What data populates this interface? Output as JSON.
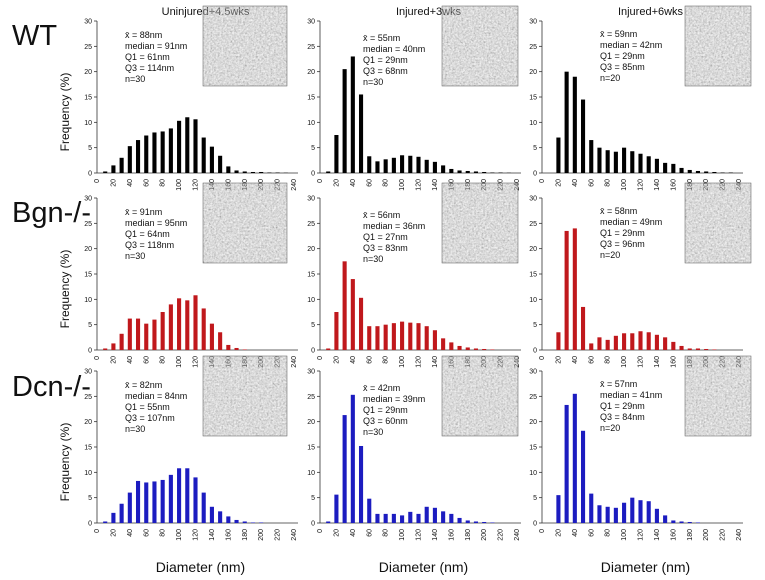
{
  "figure": {
    "col_titles": [
      "Uninjured+4.5wks",
      "Injured+3wks",
      "Injured+6wks"
    ],
    "row_labels": [
      "WT",
      "Bgn-/-",
      "Dcn-/-"
    ],
    "ylabel": "Frequency (%)",
    "xlabel": "Diameter (nm)",
    "row_colors": [
      "#000000",
      "#c0181c",
      "#1c1cc0"
    ]
  },
  "chart_data": [
    {
      "type": "bar",
      "row": "WT",
      "col": "Uninjured+4.5wks",
      "x": [
        0,
        10,
        20,
        30,
        40,
        50,
        60,
        70,
        80,
        90,
        100,
        110,
        120,
        130,
        140,
        150,
        160,
        170,
        180,
        190,
        200,
        210,
        220,
        230,
        240
      ],
      "values": [
        0,
        0.3,
        1.5,
        3,
        5.3,
        6.5,
        7.4,
        8,
        8.2,
        8.8,
        10.3,
        11,
        10.6,
        7,
        5.2,
        3.4,
        1.3,
        0.5,
        0.3,
        0.2,
        0.2,
        0.1,
        0.1,
        0.05,
        0
      ],
      "ylim": [
        0,
        30
      ],
      "stats": [
        "x̄ = 88nm",
        "median = 91nm",
        "Q1 = 61nm",
        "Q3 = 114nm",
        "n=30"
      ]
    },
    {
      "type": "bar",
      "row": "WT",
      "col": "Injured+3wks",
      "x": [
        0,
        10,
        20,
        30,
        40,
        50,
        60,
        70,
        80,
        90,
        100,
        110,
        120,
        130,
        140,
        150,
        160,
        170,
        180,
        190,
        200,
        210,
        220,
        230,
        240
      ],
      "values": [
        0,
        0.3,
        7.5,
        20.5,
        23,
        15.5,
        3.3,
        2.3,
        2.7,
        3,
        3.5,
        3.4,
        3.2,
        2.6,
        2.2,
        1.5,
        0.8,
        0.5,
        0.4,
        0.3,
        0.2,
        0.1,
        0.1,
        0.05,
        0
      ],
      "ylim": [
        0,
        30
      ],
      "stats": [
        "x̄ = 55nm",
        "median = 40nm",
        "Q1 = 29nm",
        "Q3 = 68nm",
        "n=30"
      ]
    },
    {
      "type": "bar",
      "row": "WT",
      "col": "Injured+6wks",
      "x": [
        0,
        10,
        20,
        30,
        40,
        50,
        60,
        70,
        80,
        90,
        100,
        110,
        120,
        130,
        140,
        150,
        160,
        170,
        180,
        190,
        200,
        210,
        220,
        230,
        240
      ],
      "values": [
        0,
        0,
        7,
        20,
        19,
        14.5,
        6.5,
        5,
        4.5,
        4.2,
        5,
        4.3,
        3.8,
        3.3,
        2.8,
        2,
        1.8,
        1,
        0.6,
        0.4,
        0.3,
        0.2,
        0.1,
        0.1,
        0
      ],
      "ylim": [
        0,
        30
      ],
      "stats": [
        "x̄ = 59nm",
        "median = 42nm",
        "Q1 = 29nm",
        "Q3 = 85nm",
        "n=20"
      ]
    },
    {
      "type": "bar",
      "row": "Bgn-/-",
      "col": "Uninjured+4.5wks",
      "x": [
        0,
        10,
        20,
        30,
        40,
        50,
        60,
        70,
        80,
        90,
        100,
        110,
        120,
        130,
        140,
        150,
        160,
        170,
        180,
        190,
        200,
        210,
        220,
        230,
        240
      ],
      "values": [
        0,
        0.3,
        1.3,
        3.2,
        6.2,
        6.2,
        5.2,
        6,
        7.5,
        9,
        10.2,
        9.8,
        10.8,
        8.2,
        5.2,
        3.5,
        1,
        0.4,
        0.1,
        0,
        0,
        0,
        0,
        0,
        0
      ],
      "ylim": [
        0,
        30
      ],
      "stats": [
        "x̄ = 91nm",
        "median = 95nm",
        "Q1 = 64nm",
        "Q3 = 118nm",
        "n=30"
      ]
    },
    {
      "type": "bar",
      "row": "Bgn-/-",
      "col": "Injured+3wks",
      "x": [
        0,
        10,
        20,
        30,
        40,
        50,
        60,
        70,
        80,
        90,
        100,
        110,
        120,
        130,
        140,
        150,
        160,
        170,
        180,
        190,
        200,
        210,
        220,
        230,
        240
      ],
      "values": [
        0,
        0.3,
        7.5,
        17.5,
        14,
        10.3,
        4.7,
        4.7,
        5,
        5.3,
        5.6,
        5.4,
        5.3,
        4.7,
        3.9,
        2.3,
        1.5,
        0.8,
        0.5,
        0.3,
        0.2,
        0.1,
        0,
        0,
        0
      ],
      "ylim": [
        0,
        30
      ],
      "stats": [
        "x̄ = 56nm",
        "median = 36nm",
        "Q1 = 27nm",
        "Q3 = 83nm",
        "n=30"
      ]
    },
    {
      "type": "bar",
      "row": "Bgn-/-",
      "col": "Injured+6wks",
      "x": [
        0,
        10,
        20,
        30,
        40,
        50,
        60,
        70,
        80,
        90,
        100,
        110,
        120,
        130,
        140,
        150,
        160,
        170,
        180,
        190,
        200,
        210,
        220,
        230,
        240
      ],
      "values": [
        0,
        0,
        3.5,
        23.5,
        24,
        8.5,
        1.3,
        2.5,
        2,
        2.8,
        3.3,
        3.3,
        3.7,
        3.5,
        3,
        2.5,
        1.6,
        0.8,
        0.3,
        0.3,
        0.2,
        0.1,
        0,
        0,
        0
      ],
      "ylim": [
        0,
        30
      ],
      "stats": [
        "x̄ = 58nm",
        "median = 49nm",
        "Q1 = 29nm",
        "Q3 = 96nm",
        "n=20"
      ]
    },
    {
      "type": "bar",
      "row": "Dcn-/-",
      "col": "Uninjured+4.5wks",
      "x": [
        0,
        10,
        20,
        30,
        40,
        50,
        60,
        70,
        80,
        90,
        100,
        110,
        120,
        130,
        140,
        150,
        160,
        170,
        180,
        190,
        200,
        210,
        220,
        230,
        240
      ],
      "values": [
        0,
        0.3,
        2,
        3.8,
        6,
        8.3,
        8,
        8.2,
        8.5,
        9.5,
        10.8,
        10.8,
        9,
        6,
        3.2,
        2.3,
        1.3,
        0.6,
        0.3,
        0.1,
        0.1,
        0,
        0,
        0,
        0
      ],
      "ylim": [
        0,
        30
      ],
      "stats": [
        "x̄ = 82nm",
        "median = 84nm",
        "Q1 = 55nm",
        "Q3 = 107nm",
        "n=30"
      ]
    },
    {
      "type": "bar",
      "row": "Dcn-/-",
      "col": "Injured+3wks",
      "x": [
        0,
        10,
        20,
        30,
        40,
        50,
        60,
        70,
        80,
        90,
        100,
        110,
        120,
        130,
        140,
        150,
        160,
        170,
        180,
        190,
        200,
        210,
        220,
        230,
        240
      ],
      "values": [
        0,
        0.3,
        5.6,
        21.3,
        25.3,
        15.2,
        4.8,
        1.8,
        1.8,
        1.8,
        1.5,
        2.2,
        1.8,
        3.2,
        3,
        2.3,
        1.8,
        1,
        0.5,
        0.3,
        0.2,
        0.1,
        0,
        0,
        0
      ],
      "ylim": [
        0,
        30
      ],
      "stats": [
        "x̄ = 42nm",
        "median = 39nm",
        "Q1 = 29nm",
        "Q3 = 60nm",
        "n=30"
      ]
    },
    {
      "type": "bar",
      "row": "Dcn-/-",
      "col": "Injured+6wks",
      "x": [
        0,
        10,
        20,
        30,
        40,
        50,
        60,
        70,
        80,
        90,
        100,
        110,
        120,
        130,
        140,
        150,
        160,
        170,
        180,
        190,
        200,
        210,
        220,
        230,
        240
      ],
      "values": [
        0,
        0,
        5.5,
        23.3,
        25.5,
        18.2,
        5.8,
        3.5,
        3.2,
        3,
        4,
        5,
        4.5,
        4.3,
        2.8,
        1.5,
        0.5,
        0.3,
        0.2,
        0.1,
        0,
        0,
        0,
        0,
        0
      ],
      "ylim": [
        0,
        30
      ],
      "stats": [
        "x̄ = 57nm",
        "median = 41nm",
        "Q1 = 29nm",
        "Q3 = 84nm",
        "n=20"
      ]
    }
  ]
}
